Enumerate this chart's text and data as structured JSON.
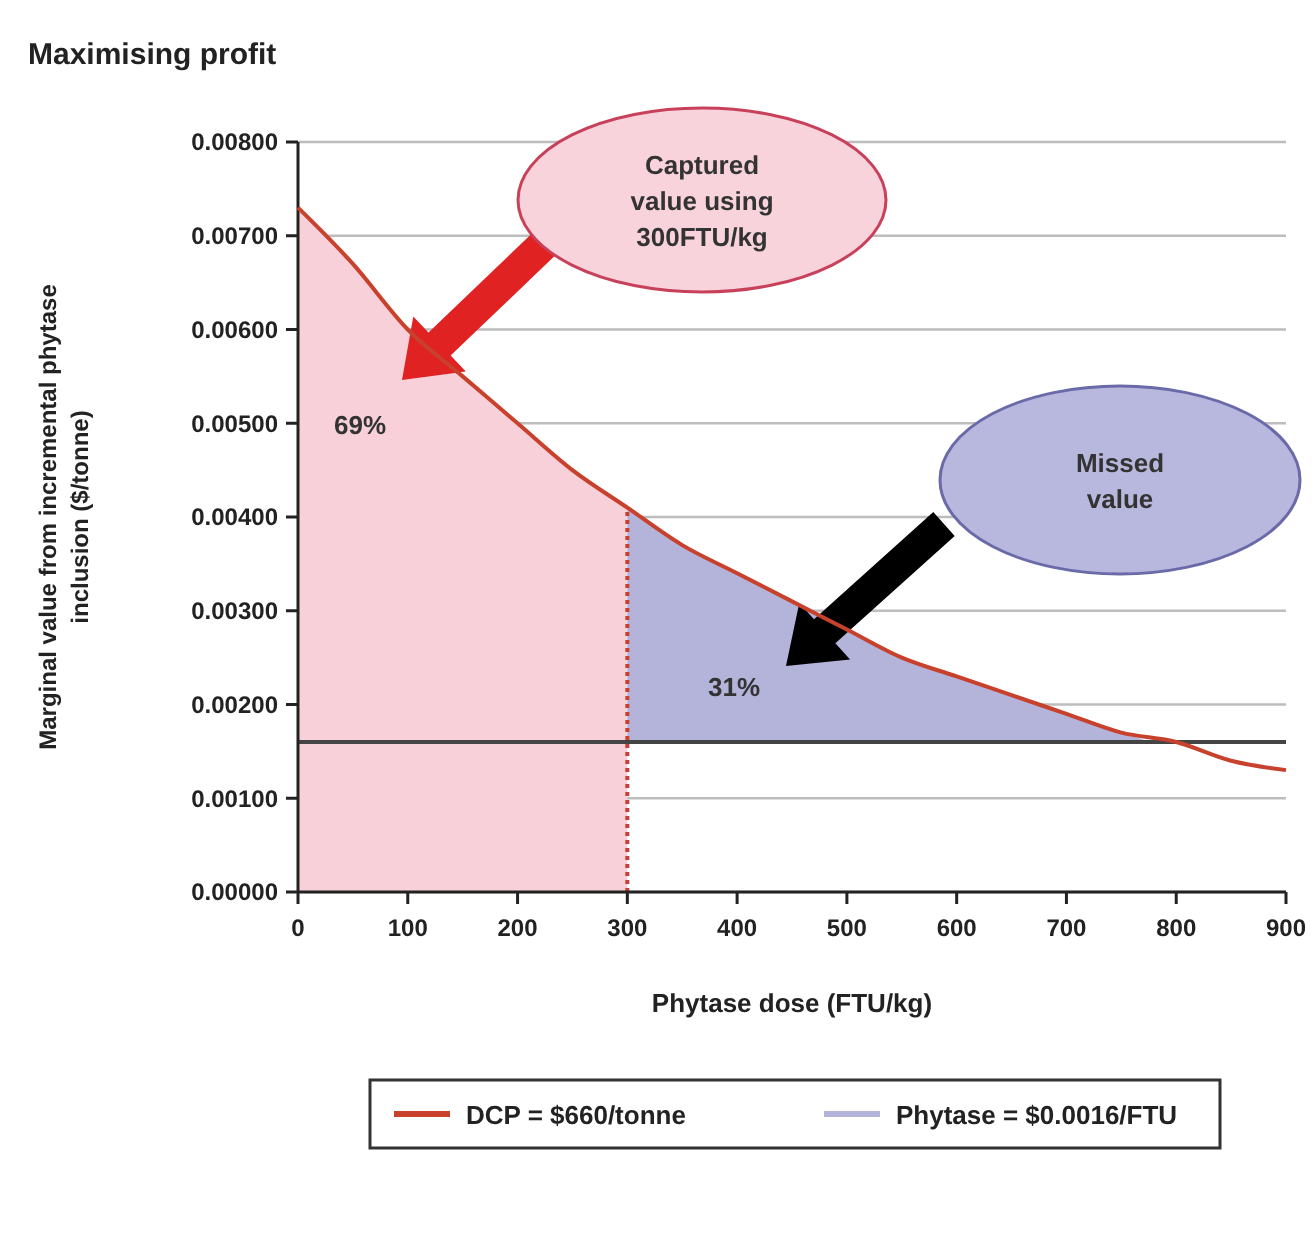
{
  "chart_data": {
    "type": "line",
    "title": "Maximising profit",
    "xlabel": "Phytase dose (FTU/kg)",
    "ylabel": "Marginal value from incremental phytase inclusion ($/tonne)",
    "xlim": [
      0,
      900
    ],
    "xticks": [
      0,
      100,
      200,
      300,
      400,
      500,
      600,
      700,
      800,
      900
    ],
    "ylim": [
      0,
      0.008
    ],
    "yticks": [
      {
        "value": 0,
        "label": "0.00000"
      },
      {
        "value": 0.001,
        "label": "0.00100"
      },
      {
        "value": 0.002,
        "label": "0.00200"
      },
      {
        "value": 0.003,
        "label": "0.00300"
      },
      {
        "value": 0.004,
        "label": "0.00400"
      },
      {
        "value": 0.005,
        "label": "0.00500"
      },
      {
        "value": 0.006,
        "label": "0.00600"
      },
      {
        "value": 0.007,
        "label": "0.00700"
      },
      {
        "value": 0.008,
        "label": "0.00800"
      }
    ],
    "grid": "y",
    "legend": "bottom",
    "series": [
      {
        "name": "DCP = $660/tonne",
        "color": "#c8412c",
        "x": [
          0,
          50,
          100,
          150,
          200,
          250,
          300,
          350,
          400,
          450,
          500,
          550,
          600,
          650,
          700,
          750,
          800,
          850,
          900
        ],
        "values": [
          0.0073,
          0.0067,
          0.006,
          0.0055,
          0.005,
          0.0045,
          0.0041,
          0.0037,
          0.0034,
          0.0031,
          0.0028,
          0.0025,
          0.0023,
          0.0021,
          0.0019,
          0.0017,
          0.0016,
          0.0014,
          0.0013
        ]
      },
      {
        "type": "area",
        "color": "#f8d0d9",
        "x": [
          0,
          50,
          100,
          150,
          200,
          250,
          300
        ],
        "values": [
          0.0073,
          0.0067,
          0.006,
          0.0055,
          0.005,
          0.0045,
          0.0041
        ]
      },
      {
        "name": "Phytase = $0.0016/FTU",
        "type": "area",
        "color": "#b4b4da",
        "x": [
          300,
          350,
          400,
          450,
          550,
          600,
          650,
          700,
          750,
          777
        ],
        "values": [
          0.0041,
          0.0037,
          0.0034,
          0.0031,
          0.0025,
          0.0023,
          0.0021,
          0.0019,
          0.0017,
          0.0016
        ]
      }
    ],
    "ref_lines": [
      {
        "axis": "y",
        "value": 0.0016,
        "color": "#444444"
      },
      {
        "axis": "x",
        "value": 300,
        "color": "#c8412c",
        "line_style": "dotted"
      }
    ],
    "annotations": [
      "69%",
      "31%",
      "Captured value using 300FTU/kg",
      "Missed value"
    ]
  }
}
